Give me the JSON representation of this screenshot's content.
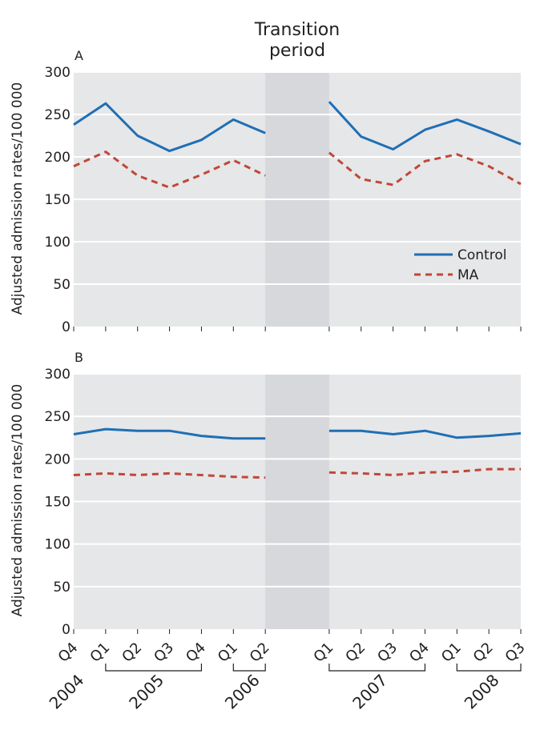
{
  "transition_label": [
    "Transition",
    "period"
  ],
  "ylabel": "Adjusted admission rates/100 000",
  "quarters": [
    "Q4",
    "Q1",
    "Q2",
    "Q3",
    "Q4",
    "Q1",
    "Q2",
    "",
    "Q1",
    "Q2",
    "Q3",
    "Q4",
    "Q1",
    "Q2",
    "Q3"
  ],
  "years": [
    {
      "label": "2004",
      "from": 0,
      "to": 0
    },
    {
      "label": "2005",
      "from": 1,
      "to": 4
    },
    {
      "label": "2006",
      "from": 5,
      "to": 6
    },
    {
      "label": "2007",
      "from": 8,
      "to": 11
    },
    {
      "label": "2008",
      "from": 12,
      "to": 14
    }
  ],
  "transition_span": [
    6,
    8
  ],
  "colors": {
    "control": "#1f6fb5",
    "ma": "#c0473a",
    "panel_bg": "#e6e7e8",
    "transition_bg": "#d7d8db"
  },
  "chart_data": [
    {
      "type": "line",
      "panel_label": "A",
      "ylim": [
        0,
        300
      ],
      "yticks": [
        0,
        50,
        100,
        150,
        200,
        250,
        300
      ],
      "legend": {
        "position": "right",
        "entries": [
          "Control",
          "MA"
        ]
      },
      "series": [
        {
          "name": "Control",
          "style": "solid",
          "values": [
            238,
            263,
            225,
            207,
            220,
            244,
            228,
            null,
            265,
            224,
            209,
            232,
            244,
            230,
            215
          ]
        },
        {
          "name": "MA",
          "style": "dashed",
          "values": [
            189,
            206,
            178,
            164,
            179,
            196,
            178,
            null,
            205,
            174,
            167,
            195,
            203,
            189,
            168
          ]
        }
      ]
    },
    {
      "type": "line",
      "panel_label": "B",
      "ylim": [
        0,
        300
      ],
      "yticks": [
        0,
        50,
        100,
        150,
        200,
        250,
        300
      ],
      "series": [
        {
          "name": "Control",
          "style": "solid",
          "values": [
            229,
            235,
            233,
            233,
            227,
            224,
            224,
            null,
            233,
            233,
            229,
            233,
            225,
            227,
            230
          ]
        },
        {
          "name": "MA",
          "style": "dashed",
          "values": [
            181,
            183,
            181,
            183,
            181,
            179,
            178,
            null,
            184,
            183,
            181,
            184,
            185,
            188,
            188
          ]
        }
      ]
    }
  ]
}
